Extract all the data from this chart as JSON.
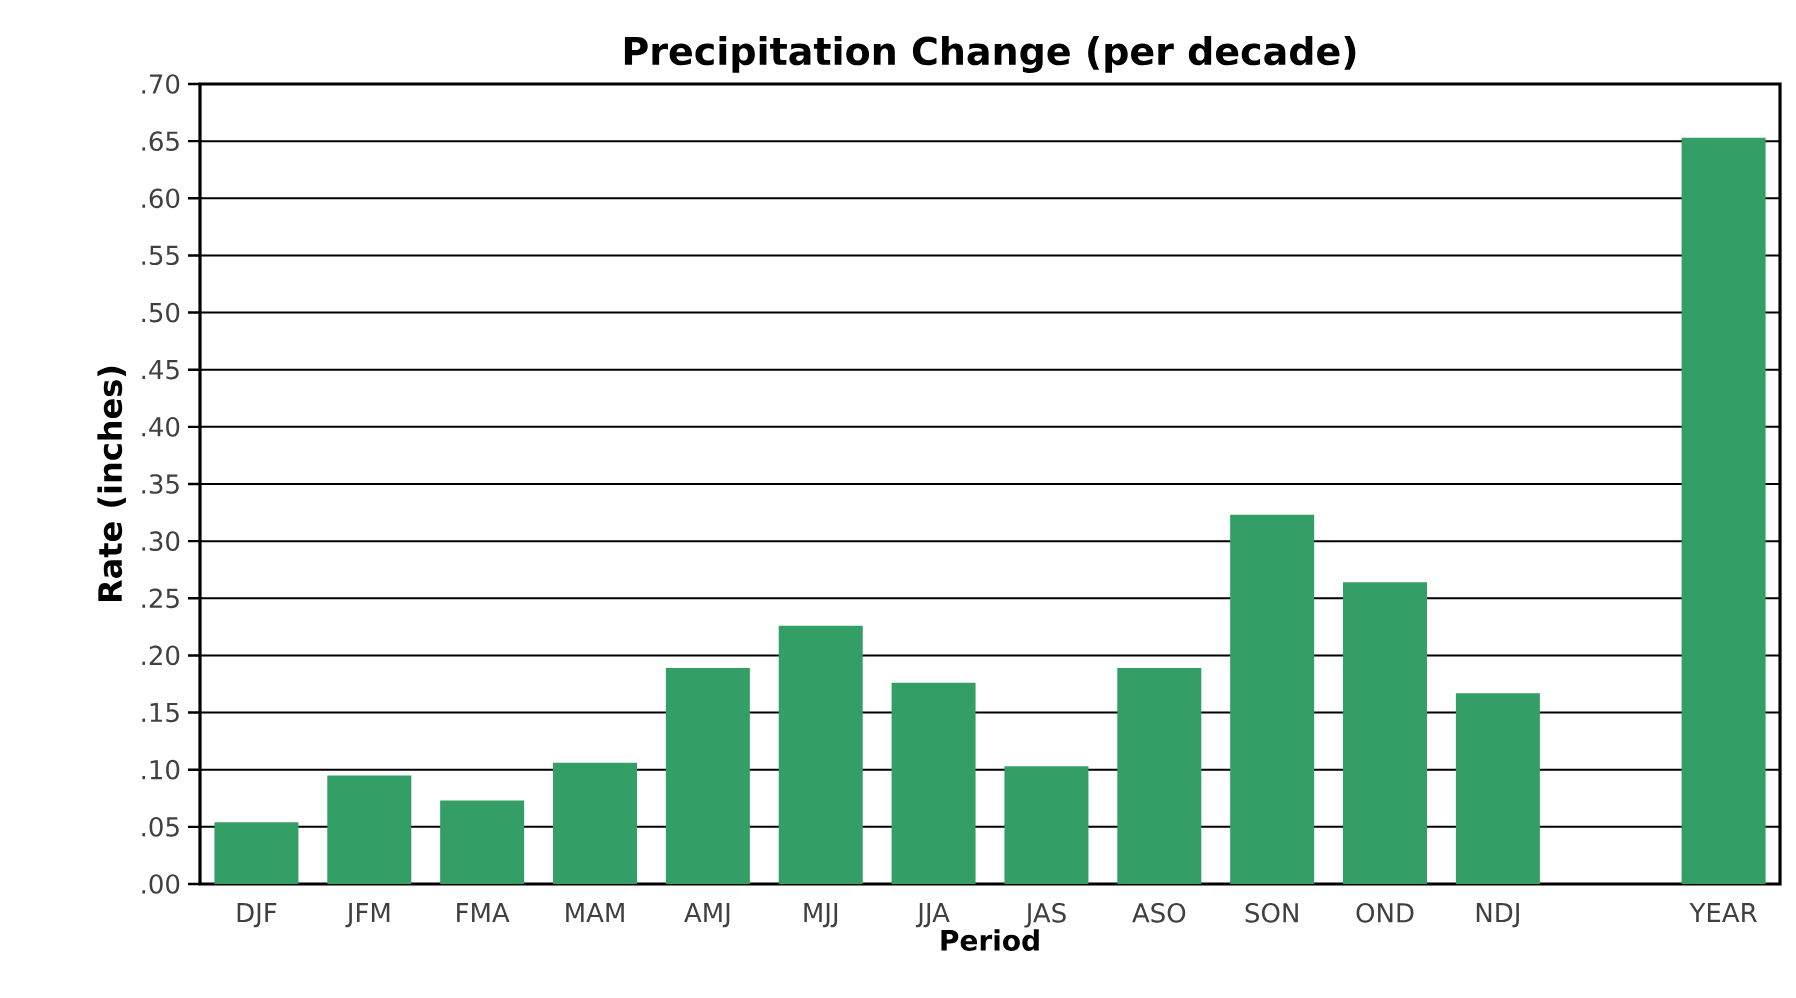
{
  "chart_data": {
    "type": "bar",
    "title": "Precipitation Change (per decade)",
    "xlabel": "Period",
    "ylabel": "Rate (inches)",
    "categories": [
      "DJF",
      "JFM",
      "FMA",
      "MAM",
      "AMJ",
      "MJJ",
      "JJA",
      "JAS",
      "ASO",
      "SON",
      "OND",
      "NDJ",
      null,
      "YEAR"
    ],
    "values": [
      0.054,
      0.095,
      0.073,
      0.106,
      0.189,
      0.226,
      0.176,
      0.103,
      0.189,
      0.323,
      0.264,
      0.167,
      null,
      0.653
    ],
    "color": "#339e66",
    "ylim": [
      0,
      0.7
    ],
    "yticks": [
      {
        "value": 0,
        "label": ".00"
      },
      {
        "value": 0.05,
        "label": ".05"
      },
      {
        "value": 0.1,
        "label": ".10"
      },
      {
        "value": 0.15,
        "label": ".15"
      },
      {
        "value": 0.2,
        "label": ".20"
      },
      {
        "value": 0.25,
        "label": ".25"
      },
      {
        "value": 0.3,
        "label": ".30"
      },
      {
        "value": 0.35,
        "label": ".35"
      },
      {
        "value": 0.4,
        "label": ".40"
      },
      {
        "value": 0.45,
        "label": ".45"
      },
      {
        "value": 0.5,
        "label": ".50"
      },
      {
        "value": 0.55,
        "label": ".55"
      },
      {
        "value": 0.6,
        "label": ".60"
      },
      {
        "value": 0.65,
        "label": ".65"
      },
      {
        "value": 0.7,
        "label": ".70"
      }
    ],
    "grid": "y"
  }
}
